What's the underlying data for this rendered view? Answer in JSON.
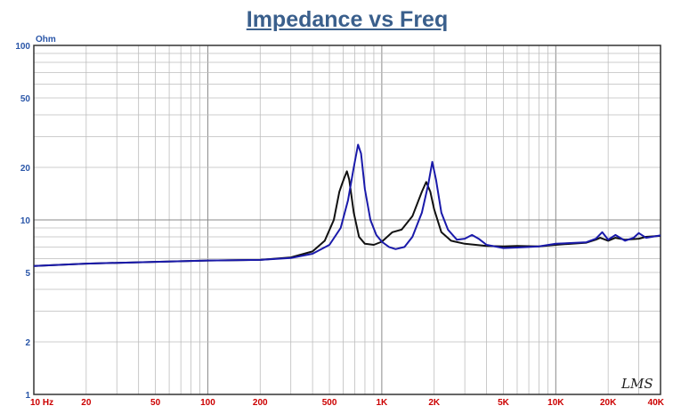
{
  "chart_data": {
    "type": "line",
    "title": "Impedance vs Freq",
    "ylabel": "Ohm",
    "xscale": "log",
    "yscale": "log",
    "xlim": [
      10,
      40000
    ],
    "ylim": [
      1,
      100
    ],
    "grid": true,
    "x_ticks": [
      {
        "v": 10,
        "label": "10 Hz"
      },
      {
        "v": 20,
        "label": "20"
      },
      {
        "v": 50,
        "label": "50"
      },
      {
        "v": 100,
        "label": "100"
      },
      {
        "v": 200,
        "label": "200"
      },
      {
        "v": 500,
        "label": "500"
      },
      {
        "v": 1000,
        "label": "1K"
      },
      {
        "v": 2000,
        "label": "2K"
      },
      {
        "v": 5000,
        "label": "5K"
      },
      {
        "v": 10000,
        "label": "10K"
      },
      {
        "v": 20000,
        "label": "20K"
      },
      {
        "v": 40000,
        "label": "40K"
      }
    ],
    "y_ticks": [
      {
        "v": 1,
        "label": "1"
      },
      {
        "v": 2,
        "label": "2"
      },
      {
        "v": 5,
        "label": "5"
      },
      {
        "v": 10,
        "label": "10"
      },
      {
        "v": 20,
        "label": "20"
      },
      {
        "v": 50,
        "label": "50"
      },
      {
        "v": 100,
        "label": "100"
      }
    ],
    "watermark": "LMS",
    "series": [
      {
        "color": "#111111",
        "points": [
          [
            10,
            5.45
          ],
          [
            20,
            5.62
          ],
          [
            50,
            5.75
          ],
          [
            100,
            5.85
          ],
          [
            200,
            5.9
          ],
          [
            300,
            6.1
          ],
          [
            400,
            6.6
          ],
          [
            470,
            7.6
          ],
          [
            530,
            10.0
          ],
          [
            570,
            14.5
          ],
          [
            590,
            16.0
          ],
          [
            610,
            17.5
          ],
          [
            630,
            19.0
          ],
          [
            650,
            17.0
          ],
          [
            690,
            11.0
          ],
          [
            740,
            8.0
          ],
          [
            800,
            7.3
          ],
          [
            900,
            7.2
          ],
          [
            1000,
            7.5
          ],
          [
            1150,
            8.5
          ],
          [
            1300,
            8.8
          ],
          [
            1500,
            10.5
          ],
          [
            1700,
            14.5
          ],
          [
            1800,
            16.5
          ],
          [
            1900,
            14.5
          ],
          [
            2000,
            11.5
          ],
          [
            2200,
            8.5
          ],
          [
            2500,
            7.6
          ],
          [
            3000,
            7.3
          ],
          [
            4000,
            7.1
          ],
          [
            5000,
            7.05
          ],
          [
            6000,
            7.1
          ],
          [
            8000,
            7.05
          ],
          [
            10000,
            7.2
          ],
          [
            15000,
            7.4
          ],
          [
            17000,
            7.7
          ],
          [
            18000,
            7.9
          ],
          [
            20000,
            7.6
          ],
          [
            22000,
            7.9
          ],
          [
            25000,
            7.7
          ],
          [
            30000,
            7.8
          ],
          [
            33000,
            8.0
          ],
          [
            40000,
            8.1
          ]
        ]
      },
      {
        "color": "#1a1aaa",
        "points": [
          [
            10,
            5.45
          ],
          [
            20,
            5.62
          ],
          [
            50,
            5.75
          ],
          [
            100,
            5.85
          ],
          [
            200,
            5.9
          ],
          [
            300,
            6.05
          ],
          [
            400,
            6.4
          ],
          [
            500,
            7.2
          ],
          [
            580,
            9.0
          ],
          [
            640,
            13.0
          ],
          [
            690,
            20.0
          ],
          [
            730,
            27.0
          ],
          [
            760,
            24.0
          ],
          [
            800,
            15.0
          ],
          [
            860,
            10.0
          ],
          [
            930,
            8.2
          ],
          [
            1000,
            7.5
          ],
          [
            1100,
            7.0
          ],
          [
            1200,
            6.8
          ],
          [
            1350,
            7.0
          ],
          [
            1500,
            8.0
          ],
          [
            1700,
            11.0
          ],
          [
            1850,
            16.0
          ],
          [
            1950,
            21.5
          ],
          [
            2050,
            17.0
          ],
          [
            2200,
            11.0
          ],
          [
            2400,
            8.8
          ],
          [
            2700,
            7.7
          ],
          [
            3000,
            7.8
          ],
          [
            3300,
            8.2
          ],
          [
            3600,
            7.8
          ],
          [
            4000,
            7.2
          ],
          [
            5000,
            6.9
          ],
          [
            6000,
            6.95
          ],
          [
            7000,
            7.0
          ],
          [
            8000,
            7.05
          ],
          [
            10000,
            7.3
          ],
          [
            15000,
            7.45
          ],
          [
            17000,
            7.8
          ],
          [
            18500,
            8.5
          ],
          [
            20000,
            7.7
          ],
          [
            22000,
            8.2
          ],
          [
            25000,
            7.6
          ],
          [
            28000,
            7.9
          ],
          [
            30000,
            8.4
          ],
          [
            33000,
            7.9
          ],
          [
            40000,
            8.15
          ]
        ]
      }
    ]
  }
}
